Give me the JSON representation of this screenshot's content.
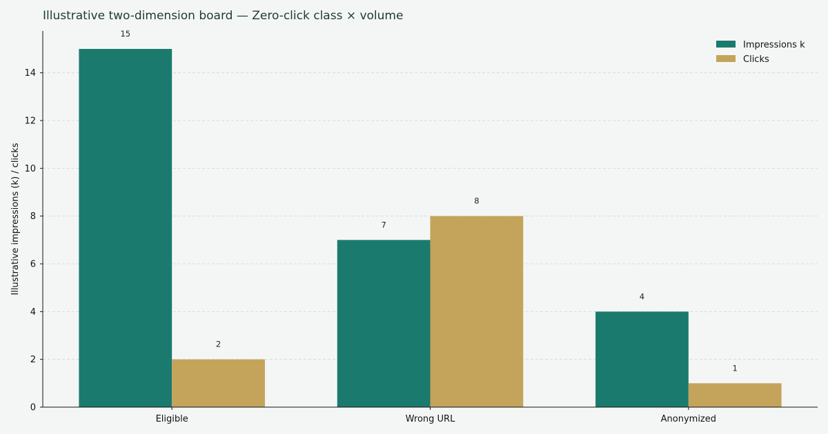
{
  "chart_data": {
    "type": "bar",
    "title": "Illustrative two-dimension board — Zero-click class × volume",
    "xlabel": "",
    "ylabel": "Illustrative impressions (k) / clicks",
    "categories": [
      "Eligible",
      "Wrong URL",
      "Anonymized"
    ],
    "series": [
      {
        "name": "Impressions k",
        "values": [
          15,
          7,
          4
        ],
        "color": "#1b7a6e"
      },
      {
        "name": "Clicks",
        "values": [
          2,
          8,
          1
        ],
        "color": "#c4a35b"
      }
    ],
    "ylim": [
      0,
      15.75
    ],
    "yticks": [
      0,
      2,
      4,
      6,
      8,
      10,
      12,
      14
    ],
    "grid": true,
    "legend_position": "top-right"
  }
}
